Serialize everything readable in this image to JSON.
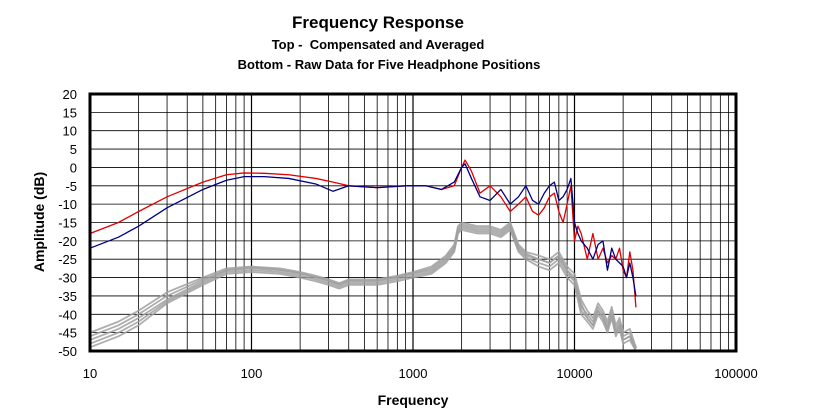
{
  "chart_data": {
    "type": "line",
    "title": "Frequency Response",
    "subtitles": [
      "Top -  Compensated and Averaged",
      "Bottom - Raw Data for Five Headphone Positions"
    ],
    "xlabel": "Frequency",
    "ylabel": "Amplitude (dB)",
    "xscale": "log",
    "xlim": [
      10,
      100000
    ],
    "ylim": [
      -50,
      20
    ],
    "x_ticks": [
      10,
      100,
      1000,
      10000,
      100000
    ],
    "x_tick_labels": [
      "10",
      "100",
      "1000",
      "10000",
      "100000"
    ],
    "y_ticks": [
      20,
      15,
      10,
      5,
      0,
      -5,
      -10,
      -15,
      -20,
      -25,
      -30,
      -35,
      -40,
      -45,
      -50
    ],
    "y_tick_labels": [
      "20",
      "15",
      "10",
      "5",
      "0",
      "-5",
      "-10",
      "-15",
      "-20",
      "-25",
      "-30",
      "-35",
      "-40",
      "-45",
      "-50"
    ],
    "grid": true,
    "legend": "none",
    "series": [
      {
        "color": "#e00000",
        "x": [
          10,
          15,
          20,
          30,
          50,
          70,
          90,
          120,
          170,
          250,
          320,
          400,
          600,
          900,
          1200,
          1500,
          1800,
          2000,
          2100,
          2300,
          2600,
          3000,
          3500,
          4000,
          4500,
          5000,
          5500,
          6000,
          6500,
          7000,
          7500,
          8000,
          8500,
          9000,
          9500,
          10000,
          10500,
          11000,
          12000,
          13000,
          14000,
          15000,
          16000,
          17000,
          18000,
          19000,
          20000,
          21000,
          22000,
          23000,
          24000
        ],
        "y": [
          -18,
          -15,
          -12,
          -8,
          -4,
          -2,
          -1.5,
          -1.6,
          -2,
          -3,
          -4,
          -5,
          -5.5,
          -5,
          -5,
          -6,
          -5,
          0,
          2,
          -1,
          -7,
          -5,
          -8,
          -12,
          -10,
          -8,
          -12,
          -13,
          -11,
          -8,
          -7,
          -12,
          -15,
          -10,
          -5,
          -20,
          -16,
          -18,
          -25,
          -18,
          -25,
          -22,
          -26,
          -24,
          -25,
          -22,
          -28,
          -30,
          -23,
          -28,
          -38
        ]
      },
      {
        "color": "#000080",
        "x": [
          10,
          15,
          20,
          30,
          50,
          70,
          90,
          120,
          170,
          250,
          320,
          400,
          600,
          900,
          1200,
          1500,
          1800,
          2000,
          2100,
          2300,
          2600,
          3000,
          3500,
          4000,
          4500,
          5000,
          5500,
          6000,
          6500,
          7000,
          7500,
          8000,
          8500,
          9000,
          9500,
          10000,
          10500,
          11000,
          12000,
          13000,
          14000,
          15000,
          16000,
          17000,
          18000,
          19000,
          20000,
          21000,
          22000,
          23000,
          24000
        ],
        "y": [
          -22,
          -19,
          -16,
          -11,
          -6,
          -3.5,
          -2.5,
          -2.5,
          -3,
          -4.5,
          -6.5,
          -5,
          -5.5,
          -5,
          -5,
          -6,
          -4,
          0,
          1,
          -3,
          -8,
          -9,
          -6,
          -10,
          -8,
          -5,
          -9,
          -10,
          -7,
          -5,
          -4,
          -9,
          -8,
          -6,
          -3,
          -15,
          -18,
          -20,
          -22,
          -25,
          -21,
          -20,
          -28,
          -22,
          -25,
          -26,
          -27,
          -30,
          -26,
          -30,
          -35
        ]
      },
      {
        "color": "#a0a0a0",
        "x": [
          10,
          15,
          20,
          30,
          50,
          70,
          100,
          150,
          200,
          250,
          300,
          350,
          400,
          600,
          800,
          1000,
          1300,
          1600,
          1800,
          1900,
          2000,
          2500,
          3000,
          3500,
          4000,
          4500,
          5000,
          6000,
          7000,
          8000,
          9000,
          10000,
          11000,
          12000,
          13000,
          14000,
          15000,
          16000,
          17000,
          18000,
          19000,
          20000,
          22000,
          24000
        ],
        "y": [
          -47,
          -44,
          -41,
          -36,
          -31,
          -28,
          -27.5,
          -28,
          -29,
          -30,
          -31,
          -32,
          -31,
          -31,
          -30,
          -29,
          -28,
          -25,
          -22,
          -17,
          -16,
          -17,
          -17,
          -18,
          -16,
          -22,
          -24,
          -25,
          -26,
          -24,
          -28,
          -30,
          -38,
          -40,
          -42,
          -38,
          -40,
          -43,
          -39,
          -44,
          -42,
          -46,
          -45,
          -50
        ]
      },
      {
        "color": "#a0a0a0",
        "x": [
          10,
          15,
          20,
          30,
          50,
          70,
          100,
          150,
          200,
          250,
          300,
          350,
          400,
          600,
          800,
          1000,
          1300,
          1600,
          1800,
          1900,
          2000,
          2500,
          3000,
          3500,
          4000,
          4500,
          5000,
          6000,
          7000,
          8000,
          9000,
          10000,
          11000,
          12000,
          13000,
          14000,
          15000,
          16000,
          17000,
          18000,
          19000,
          20000,
          22000,
          24000
        ],
        "y": [
          -45,
          -42,
          -39,
          -34,
          -30,
          -27.5,
          -27,
          -27.5,
          -28.5,
          -29.5,
          -30.5,
          -31.5,
          -30.5,
          -30.5,
          -29.5,
          -28.5,
          -27,
          -24,
          -21,
          -16,
          -15,
          -16,
          -16,
          -17,
          -15,
          -21,
          -23,
          -24,
          -25,
          -23,
          -27,
          -29,
          -36,
          -39,
          -41,
          -37,
          -39,
          -42,
          -38,
          -43,
          -41,
          -45,
          -44,
          -49
        ]
      },
      {
        "color": "#a0a0a0",
        "x": [
          10,
          15,
          20,
          30,
          50,
          70,
          100,
          150,
          200,
          250,
          300,
          350,
          400,
          600,
          800,
          1000,
          1300,
          1600,
          1800,
          1900,
          2000,
          2500,
          3000,
          3500,
          4000,
          4500,
          5000,
          6000,
          7000,
          8000,
          9000,
          10000,
          11000,
          12000,
          13000,
          14000,
          15000,
          16000,
          17000,
          18000,
          19000,
          20000,
          22000,
          24000
        ],
        "y": [
          -49,
          -46,
          -43,
          -37,
          -32,
          -29,
          -28.5,
          -29,
          -30,
          -31,
          -32,
          -33,
          -32,
          -32,
          -31,
          -30,
          -29,
          -26,
          -23,
          -18,
          -17,
          -18,
          -18,
          -19,
          -17,
          -23,
          -25,
          -27,
          -28,
          -26,
          -30,
          -32,
          -40,
          -42,
          -44,
          -40,
          -42,
          -45,
          -41,
          -46,
          -44,
          -48,
          -47,
          -50
        ]
      },
      {
        "color": "#a0a0a0",
        "x": [
          10,
          15,
          20,
          30,
          50,
          70,
          100,
          150,
          200,
          250,
          300,
          350,
          400,
          600,
          800,
          1000,
          1300,
          1600,
          1800,
          1900,
          2000,
          2500,
          3000,
          3500,
          4000,
          4500,
          5000,
          6000,
          7000,
          8000,
          9000,
          10000,
          11000,
          12000,
          13000,
          14000,
          15000,
          16000,
          17000,
          18000,
          19000,
          20000,
          22000,
          24000
        ],
        "y": [
          -46,
          -43,
          -40,
          -35,
          -30.5,
          -28,
          -27.2,
          -27.8,
          -28.8,
          -29.8,
          -30.8,
          -31.8,
          -30.8,
          -30.8,
          -29.8,
          -28.8,
          -27.5,
          -24.5,
          -21.5,
          -16.5,
          -15.5,
          -16.5,
          -16.5,
          -17.5,
          -15.5,
          -21.5,
          -23.5,
          -25,
          -26,
          -24,
          -28,
          -31,
          -37,
          -41,
          -43,
          -39,
          -41,
          -44,
          -40,
          -45,
          -43,
          -47,
          -46,
          -49
        ]
      },
      {
        "color": "#a0a0a0",
        "x": [
          10,
          15,
          20,
          30,
          50,
          70,
          100,
          150,
          200,
          250,
          300,
          350,
          400,
          600,
          800,
          1000,
          1300,
          1600,
          1800,
          1900,
          2000,
          2500,
          3000,
          3500,
          4000,
          4500,
          5000,
          6000,
          7000,
          8000,
          9000,
          10000,
          11000,
          12000,
          13000,
          14000,
          15000,
          16000,
          17000,
          18000,
          19000,
          20000,
          22000,
          24000
        ],
        "y": [
          -48,
          -45,
          -42,
          -36.5,
          -31.5,
          -28.5,
          -28,
          -28.5,
          -29.5,
          -30.5,
          -31.5,
          -32.5,
          -31.5,
          -31.5,
          -30.5,
          -29.5,
          -28.5,
          -25.5,
          -22.5,
          -17.5,
          -16.5,
          -17.5,
          -17.5,
          -18.5,
          -16.5,
          -22.5,
          -24.5,
          -26,
          -27,
          -25,
          -29,
          -31,
          -39,
          -41,
          -43,
          -39,
          -41,
          -44,
          -40,
          -45,
          -43,
          -47,
          -46,
          -50
        ]
      }
    ]
  }
}
